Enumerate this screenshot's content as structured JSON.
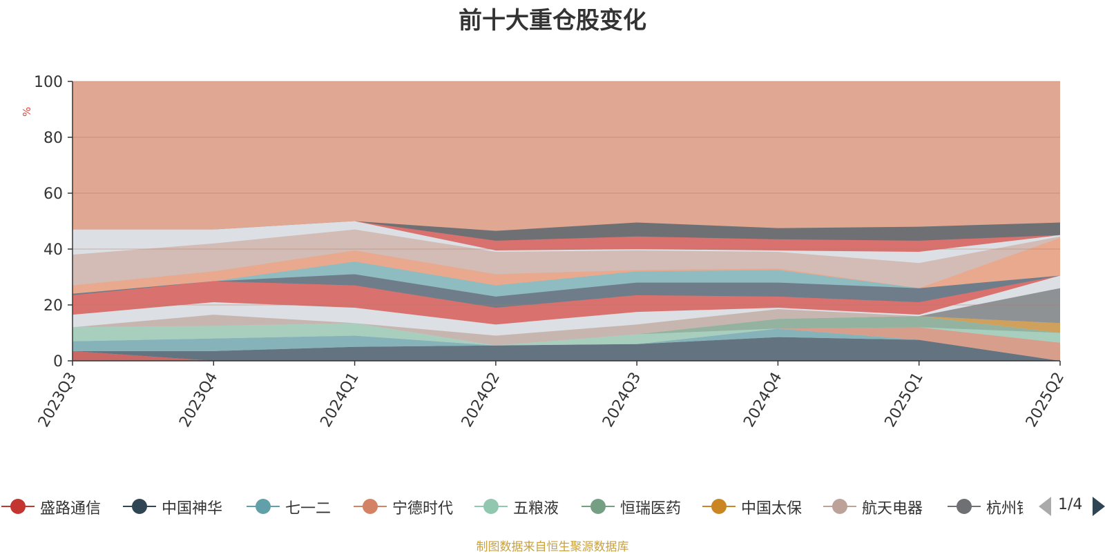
{
  "title": "前十大重仓股变化",
  "source": "制图数据来自恒生聚源数据库",
  "legend_page": "1/4",
  "chart_data": {
    "type": "area",
    "title": "前十大重仓股变化",
    "ylabel": "%",
    "ylim": [
      0,
      100
    ],
    "yticks": [
      0,
      20,
      40,
      60,
      80,
      100
    ],
    "categories": [
      "2023Q3",
      "2023Q4",
      "2024Q1",
      "2024Q2",
      "2024Q3",
      "2024Q4",
      "2025Q1",
      "2025Q2"
    ],
    "grid": true,
    "legend": "bottom",
    "series": [
      {
        "name": "盛路通信",
        "color": "#c23531",
        "values": [
          3.5,
          0,
          0,
          0,
          0,
          0,
          0,
          0
        ]
      },
      {
        "name": "中国神华",
        "color": "#2f4554",
        "values": [
          0,
          3.5,
          5,
          5.5,
          6,
          8.5,
          7.5,
          0
        ]
      },
      {
        "name": "七一二",
        "color": "#61a0a8",
        "values": [
          3.5,
          4.5,
          4,
          0,
          0,
          3,
          0,
          0
        ]
      },
      {
        "name": "宁德时代",
        "color": "#d48265",
        "values": [
          0,
          0,
          0,
          0,
          0,
          0,
          4.5,
          6.5
        ]
      },
      {
        "name": "五粮液",
        "color": "#91c7ae",
        "values": [
          5,
          4.5,
          4.5,
          0,
          3.5,
          0,
          0,
          3.5
        ]
      },
      {
        "name": "恒瑞医药",
        "color": "#749f83",
        "values": [
          0,
          0,
          0,
          0,
          0,
          3.5,
          4,
          0
        ]
      },
      {
        "name": "中国太保",
        "color": "#ca8622",
        "values": [
          0,
          0,
          0,
          0,
          0,
          0,
          0,
          3.5
        ]
      },
      {
        "name": "航天电器",
        "color": "#bda29a",
        "values": [
          0,
          4,
          0,
          3.5,
          3.5,
          3.5,
          0,
          0
        ]
      },
      {
        "name": "杭州银行",
        "color": "#6e7074",
        "values": [
          0,
          0,
          0,
          0,
          0,
          0,
          0,
          12.5
        ]
      }
    ]
  }
}
